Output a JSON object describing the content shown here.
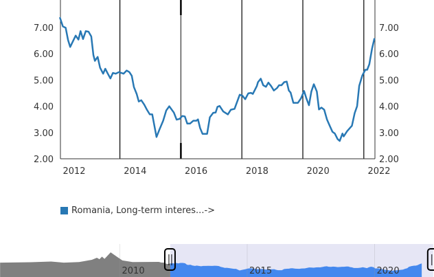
{
  "chart_data": {
    "type": "line",
    "title": "",
    "xlabel": "",
    "ylabel": "",
    "xlim": [
      2011.53,
      2021.87
    ],
    "ylim": [
      2.0,
      8.0
    ],
    "y_ticks": [
      "2.00",
      "3.00",
      "4.00",
      "5.00",
      "6.00",
      "7.00"
    ],
    "y_tick_values": [
      2,
      3,
      4,
      5,
      6,
      7
    ],
    "x_ticks": [
      "2012",
      "2014",
      "2016",
      "2018",
      "2020",
      "2022"
    ],
    "x_tick_values": [
      2012,
      2014,
      2016,
      2018,
      2020,
      2022
    ],
    "y_axes": [
      "left",
      "right"
    ],
    "grid": false,
    "vertical_lines": [
      2013.5,
      2015.5,
      2017.5,
      2019.5,
      2021.5
    ],
    "legend_position": "bottom-left",
    "series": [
      {
        "name": "Romania, Long-term interes...->",
        "color": "#2878b4",
        "points": [
          [
            2011.53,
            7.39
          ],
          [
            2011.63,
            7.04
          ],
          [
            2011.72,
            6.99
          ],
          [
            2011.8,
            6.52
          ],
          [
            2011.87,
            6.26
          ],
          [
            2012.05,
            6.69
          ],
          [
            2012.14,
            6.54
          ],
          [
            2012.21,
            6.86
          ],
          [
            2012.29,
            6.56
          ],
          [
            2012.38,
            6.86
          ],
          [
            2012.47,
            6.84
          ],
          [
            2012.56,
            6.66
          ],
          [
            2012.63,
            5.95
          ],
          [
            2012.68,
            5.73
          ],
          [
            2012.77,
            5.88
          ],
          [
            2012.85,
            5.47
          ],
          [
            2012.95,
            5.24
          ],
          [
            2013.02,
            5.43
          ],
          [
            2013.1,
            5.25
          ],
          [
            2013.19,
            5.06
          ],
          [
            2013.27,
            5.27
          ],
          [
            2013.36,
            5.24
          ],
          [
            2013.47,
            5.3
          ],
          [
            2013.62,
            5.24
          ],
          [
            2013.72,
            5.36
          ],
          [
            2013.81,
            5.3
          ],
          [
            2013.89,
            5.16
          ],
          [
            2013.96,
            4.73
          ],
          [
            2014.05,
            4.47
          ],
          [
            2014.12,
            4.18
          ],
          [
            2014.2,
            4.23
          ],
          [
            2014.3,
            4.06
          ],
          [
            2014.39,
            3.86
          ],
          [
            2014.48,
            3.69
          ],
          [
            2014.56,
            3.69
          ],
          [
            2014.7,
            2.83
          ],
          [
            2014.8,
            3.12
          ],
          [
            2014.92,
            3.45
          ],
          [
            2015.02,
            3.84
          ],
          [
            2015.12,
            4.0
          ],
          [
            2015.27,
            3.76
          ],
          [
            2015.36,
            3.49
          ],
          [
            2015.46,
            3.52
          ],
          [
            2015.55,
            3.63
          ],
          [
            2015.63,
            3.61
          ],
          [
            2015.71,
            3.34
          ],
          [
            2015.8,
            3.34
          ],
          [
            2015.91,
            3.45
          ],
          [
            2016.01,
            3.45
          ],
          [
            2016.06,
            3.5
          ],
          [
            2016.13,
            3.17
          ],
          [
            2016.21,
            2.95
          ],
          [
            2016.36,
            2.95
          ],
          [
            2016.45,
            3.58
          ],
          [
            2016.56,
            3.75
          ],
          [
            2016.64,
            3.76
          ],
          [
            2016.7,
            3.98
          ],
          [
            2016.77,
            4.01
          ],
          [
            2016.89,
            3.8
          ],
          [
            2017.04,
            3.69
          ],
          [
            2017.14,
            3.87
          ],
          [
            2017.26,
            3.9
          ],
          [
            2017.43,
            4.44
          ],
          [
            2017.52,
            4.4
          ],
          [
            2017.61,
            4.27
          ],
          [
            2017.71,
            4.49
          ],
          [
            2017.8,
            4.51
          ],
          [
            2017.86,
            4.47
          ],
          [
            2017.99,
            4.77
          ],
          [
            2018.03,
            4.92
          ],
          [
            2018.12,
            5.05
          ],
          [
            2018.2,
            4.8
          ],
          [
            2018.29,
            4.74
          ],
          [
            2018.37,
            4.9
          ],
          [
            2018.46,
            4.77
          ],
          [
            2018.55,
            4.6
          ],
          [
            2018.65,
            4.69
          ],
          [
            2018.72,
            4.8
          ],
          [
            2018.8,
            4.8
          ],
          [
            2018.89,
            4.92
          ],
          [
            2018.97,
            4.94
          ],
          [
            2019.04,
            4.6
          ],
          [
            2019.1,
            4.52
          ],
          [
            2019.19,
            4.13
          ],
          [
            2019.34,
            4.13
          ],
          [
            2019.44,
            4.3
          ],
          [
            2019.54,
            4.58
          ],
          [
            2019.61,
            4.32
          ],
          [
            2019.7,
            4.04
          ],
          [
            2019.78,
            4.56
          ],
          [
            2019.86,
            4.84
          ],
          [
            2019.96,
            4.56
          ],
          [
            2020.03,
            3.88
          ],
          [
            2020.11,
            3.95
          ],
          [
            2020.2,
            3.87
          ],
          [
            2020.29,
            3.5
          ],
          [
            2020.38,
            3.26
          ],
          [
            2020.47,
            3.03
          ],
          [
            2020.55,
            2.96
          ],
          [
            2020.64,
            2.75
          ],
          [
            2020.71,
            2.68
          ],
          [
            2020.8,
            2.96
          ],
          [
            2020.84,
            2.85
          ],
          [
            2020.95,
            3.05
          ],
          [
            2021.05,
            3.18
          ],
          [
            2021.11,
            3.26
          ],
          [
            2021.2,
            3.74
          ],
          [
            2021.28,
            4.0
          ],
          [
            2021.35,
            4.78
          ],
          [
            2021.45,
            5.17
          ],
          [
            2021.55,
            5.39
          ],
          [
            2021.61,
            5.39
          ],
          [
            2021.68,
            5.6
          ],
          [
            2021.77,
            6.2
          ],
          [
            2021.85,
            6.59
          ]
        ]
      }
    ],
    "navigator": {
      "x_ticks": [
        "2010",
        "2015",
        "2020"
      ],
      "x_tick_values": [
        2010,
        2015,
        2020
      ],
      "xlim": [
        2005.3,
        2022.35
      ],
      "selected_range": [
        2011.98,
        2022.3
      ],
      "outside_color": "#808080",
      "selected_fill": "#4488ee",
      "selected_background": "#e6e6f5",
      "early_points": [
        [
          2005.3,
          7.0
        ],
        [
          2006.5,
          7.2
        ],
        [
          2007.3,
          7.6
        ],
        [
          2007.8,
          7.0
        ],
        [
          2008.4,
          7.3
        ],
        [
          2008.9,
          8.5
        ],
        [
          2009.1,
          9.6
        ],
        [
          2009.2,
          8.8
        ],
        [
          2009.3,
          10.2
        ],
        [
          2009.4,
          9.0
        ],
        [
          2009.64,
          12.5
        ],
        [
          2009.9,
          10.0
        ],
        [
          2010.1,
          8.2
        ],
        [
          2010.5,
          7.3
        ],
        [
          2011.5,
          7.4
        ]
      ]
    }
  }
}
